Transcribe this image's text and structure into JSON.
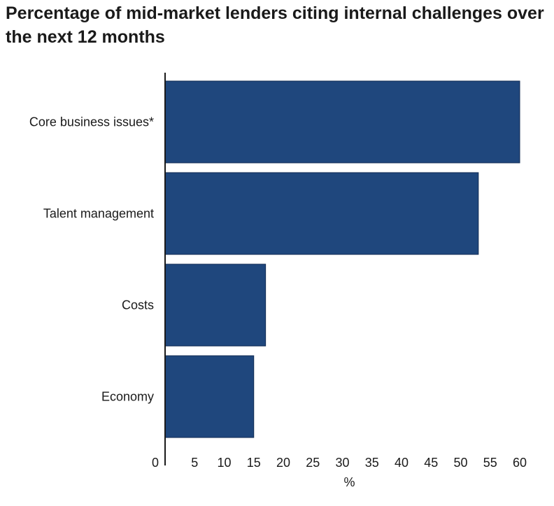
{
  "chart_data": {
    "type": "bar",
    "orientation": "horizontal",
    "title": "Percentage of mid-market lenders citing internal challenges over the next 12 months",
    "categories": [
      "Core business issues*",
      "Talent management",
      "Costs",
      "Economy"
    ],
    "values": [
      60,
      53,
      17,
      15
    ],
    "xlabel": "%",
    "ylabel": "",
    "xlim": [
      0,
      60
    ],
    "xticks": [
      0,
      5,
      10,
      15,
      20,
      25,
      30,
      35,
      40,
      45,
      50,
      55,
      60
    ],
    "grid": false,
    "legend": "none",
    "bar_color": "#1f477d",
    "bar_edge_color": "#0f2a52"
  }
}
